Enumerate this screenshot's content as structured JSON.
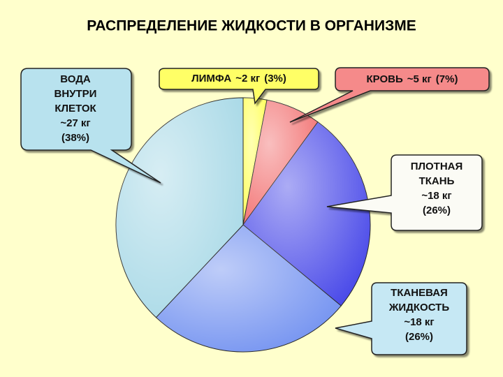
{
  "chart_data": {
    "type": "pie",
    "title": "РАСПРЕДЕЛЕНИЕ ЖИДКОСТИ В ОРГАНИЗМЕ",
    "categories": [
      "ЛИМФА",
      "КРОВЬ",
      "ПЛОТНАЯ ТКАНЬ",
      "ТКАНЕВАЯ ЖИДКОСТЬ",
      "ВОДА ВНУТРИ КЛЕТОК"
    ],
    "masses": [
      "~2 кг",
      "~5 кг",
      "~18 кг",
      "~18 кг",
      "~27 кг"
    ],
    "values": [
      3,
      7,
      26,
      26,
      38
    ],
    "value_labels": [
      "(3%)",
      "(7%)",
      "(26%)",
      "(26%)",
      "(38%)"
    ],
    "colors": [
      "#ffff55",
      "#f27070",
      "#4646e8",
      "#6f8ff0",
      "#a6d8e6"
    ]
  }
}
